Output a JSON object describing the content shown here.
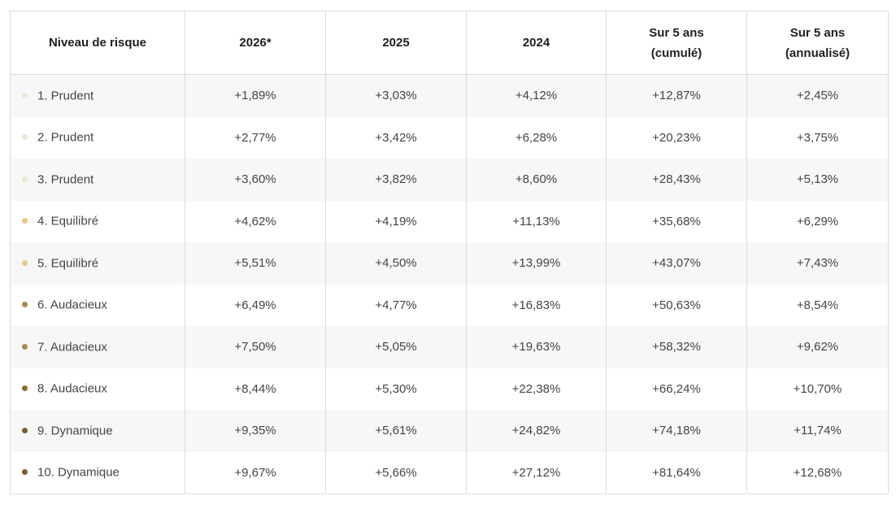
{
  "table": {
    "headers": [
      {
        "lines": [
          "Niveau de risque"
        ]
      },
      {
        "lines": [
          "2026*"
        ]
      },
      {
        "lines": [
          "2025"
        ]
      },
      {
        "lines": [
          "2024"
        ]
      },
      {
        "lines": [
          "Sur 5 ans",
          "(cumulé)"
        ]
      },
      {
        "lines": [
          "Sur 5 ans",
          "(annualisé)"
        ]
      }
    ],
    "rows": [
      {
        "label": "1. Prudent",
        "dot_color": "#ebe7d6",
        "values": [
          "+1,89%",
          "+3,03%",
          "+4,12%",
          "+12,87%",
          "+2,45%"
        ]
      },
      {
        "label": "2. Prudent",
        "dot_color": "#ebe7d6",
        "values": [
          "+2,77%",
          "+3,42%",
          "+6,28%",
          "+20,23%",
          "+3,75%"
        ]
      },
      {
        "label": "3. Prudent",
        "dot_color": "#ebe7d6",
        "values": [
          "+3,60%",
          "+3,82%",
          "+8,60%",
          "+28,43%",
          "+5,13%"
        ]
      },
      {
        "label": "4. Equilibré",
        "dot_color": "#efc78e",
        "values": [
          "+4,62%",
          "+4,19%",
          "+11,13%",
          "+35,68%",
          "+6,29%"
        ]
      },
      {
        "label": "5. Equilibré",
        "dot_color": "#efc78e",
        "values": [
          "+5,51%",
          "+4,50%",
          "+13,99%",
          "+43,07%",
          "+7,43%"
        ]
      },
      {
        "label": "6. Audacieux",
        "dot_color": "#a98b4f",
        "values": [
          "+6,49%",
          "+4,77%",
          "+16,83%",
          "+50,63%",
          "+8,54%"
        ]
      },
      {
        "label": "7. Audacieux",
        "dot_color": "#a98b4f",
        "values": [
          "+7,50%",
          "+5,05%",
          "+19,63%",
          "+58,32%",
          "+9,62%"
        ]
      },
      {
        "label": "8. Audacieux",
        "dot_color": "#8a6c3a",
        "values": [
          "+8,44%",
          "+5,30%",
          "+22,38%",
          "+66,24%",
          "+10,70%"
        ]
      },
      {
        "label": "9. Dynamique",
        "dot_color": "#7a5e2f",
        "values": [
          "+9,35%",
          "+5,61%",
          "+24,82%",
          "+74,18%",
          "+11,74%"
        ]
      },
      {
        "label": "10. Dynamique",
        "dot_color": "#7a5e2f",
        "values": [
          "+9,67%",
          "+5,66%",
          "+27,12%",
          "+81,64%",
          "+12,68%"
        ]
      }
    ]
  }
}
